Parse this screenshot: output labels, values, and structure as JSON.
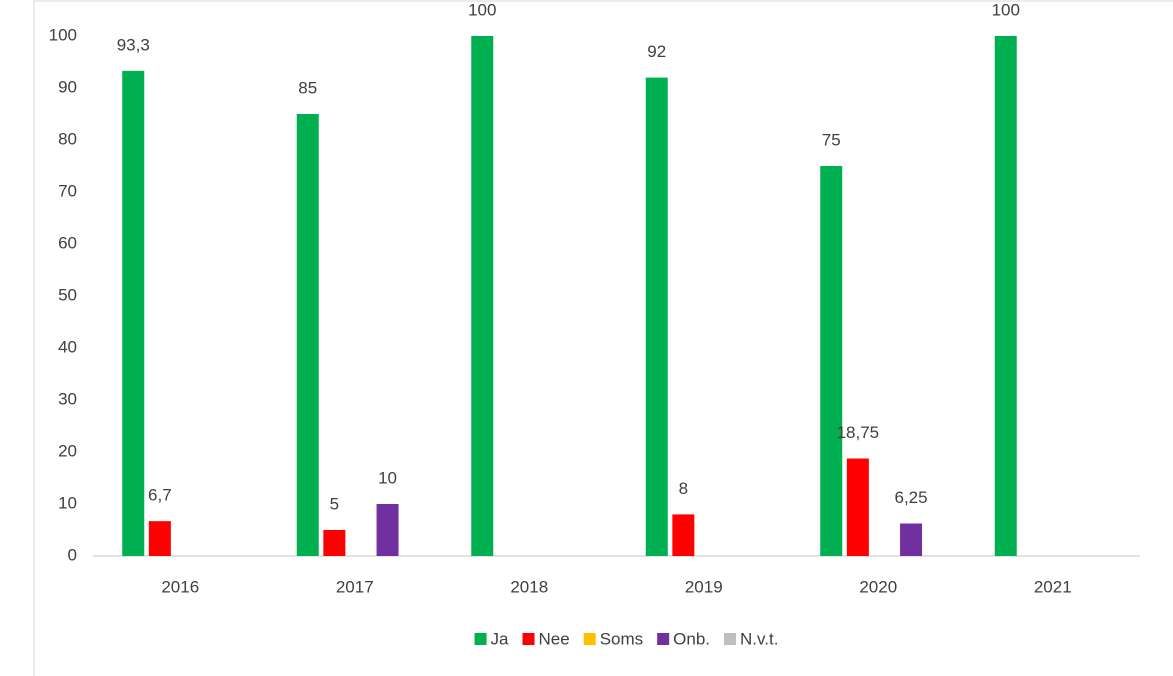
{
  "chart_data": {
    "type": "bar",
    "categories": [
      "2016",
      "2017",
      "2018",
      "2019",
      "2020",
      "2021"
    ],
    "series": [
      {
        "name": "Ja",
        "color": "#00b050",
        "values": [
          93.3,
          85,
          100,
          92,
          75,
          100
        ],
        "value_labels": [
          "93,3",
          "85",
          "100",
          "92",
          "75",
          "100"
        ]
      },
      {
        "name": "Nee",
        "color": "#ff0000",
        "values": [
          6.7,
          5,
          null,
          8,
          18.75,
          null
        ],
        "value_labels": [
          "6,7",
          "5",
          null,
          "8",
          "18,75",
          null
        ]
      },
      {
        "name": "Soms",
        "color": "#ffc000",
        "values": [
          null,
          null,
          null,
          null,
          null,
          null
        ]
      },
      {
        "name": "Onb.",
        "color": "#7030a0",
        "values": [
          null,
          10,
          null,
          null,
          6.25,
          null
        ],
        "value_labels": [
          null,
          "10",
          null,
          null,
          "6,25",
          null
        ]
      },
      {
        "name": "N.v.t.",
        "color": "#bfbfbf",
        "values": [
          null,
          null,
          null,
          null,
          null,
          null
        ]
      }
    ],
    "ylim": [
      0,
      100
    ],
    "yticks": [
      0,
      10,
      20,
      30,
      40,
      50,
      60,
      70,
      80,
      90,
      100
    ],
    "grid": false,
    "legend": "bottom"
  }
}
